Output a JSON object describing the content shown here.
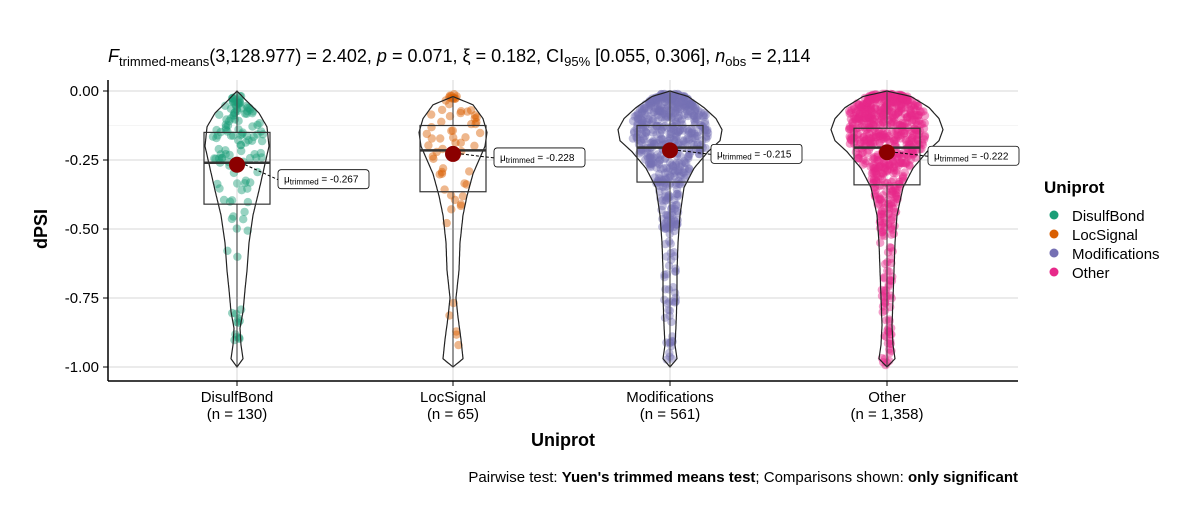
{
  "chart_data": {
    "type": "violin",
    "title": {
      "stat_name": "F",
      "stat_sub": "trimmed-means",
      "stat_args": "(3,128.977) = 2.402, ",
      "p_label": "p",
      "p_value": " = 0.071, ",
      "effect_symbol": "ξ",
      "effect_value": " = 0.182, CI",
      "ci_sub": "95%",
      "ci_value": " [0.055, 0.306], ",
      "n_label": "n",
      "n_sub": "obs",
      "n_value": " = 2,114"
    },
    "xlabel": "Uniprot",
    "ylabel": "dPSI",
    "ylim": [
      -1.0,
      0.0
    ],
    "yticks": [
      {
        "value": 0.0,
        "label": "0.00"
      },
      {
        "value": -0.25,
        "label": "-0.25"
      },
      {
        "value": -0.5,
        "label": "-0.50"
      },
      {
        "value": -0.75,
        "label": "-0.75"
      },
      {
        "value": -1.0,
        "label": "-1.00"
      }
    ],
    "grid": true,
    "legend": {
      "title": "Uniprot",
      "position": "right",
      "items": [
        {
          "label": "DisulfBond",
          "color": "#1b9e77"
        },
        {
          "label": "LocSignal",
          "color": "#d95f02"
        },
        {
          "label": "Modifications",
          "color": "#7570b3"
        },
        {
          "label": "Other",
          "color": "#e7298a"
        }
      ]
    },
    "groups": [
      {
        "name": "DisulfBond",
        "n_label": "(n = 130)",
        "n": 130,
        "color": "#1b9e77",
        "mean_trimmed": -0.267,
        "mean_label": "-0.267",
        "q1": -0.41,
        "median": -0.26,
        "q3": -0.15,
        "whisker_low": -1.0,
        "whisker_high": 0.0
      },
      {
        "name": "LocSignal",
        "n_label": "(n = 65)",
        "n": 65,
        "color": "#d95f02",
        "mean_trimmed": -0.228,
        "mean_label": "-0.228",
        "q1": -0.365,
        "median": -0.215,
        "q3": -0.125,
        "whisker_low": -1.0,
        "whisker_high": -0.02
      },
      {
        "name": "Modifications",
        "n_label": "(n = 561)",
        "n": 561,
        "color": "#7570b3",
        "mean_trimmed": -0.215,
        "mean_label": "-0.215",
        "q1": -0.33,
        "median": -0.205,
        "q3": -0.125,
        "whisker_low": -1.0,
        "whisker_high": 0.0
      },
      {
        "name": "Other",
        "n_label": "(n = 1,358)",
        "n": 1358,
        "color": "#e7298a",
        "mean_trimmed": -0.222,
        "mean_label": "-0.222",
        "q1": -0.34,
        "median": -0.205,
        "q3": -0.135,
        "whisker_low": -1.0,
        "whisker_high": 0.0
      }
    ],
    "mean_label_prefix": "μ",
    "mean_label_sub": "trimmed",
    "caption": {
      "prefix": "Pairwise test: ",
      "test": "Yuen's trimmed means test",
      "middle": "; Comparisons shown: ",
      "shown": "only significant"
    }
  }
}
